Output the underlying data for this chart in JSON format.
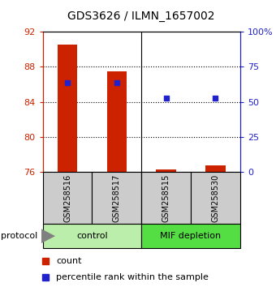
{
  "title": "GDS3626 / ILMN_1657002",
  "samples": [
    "GSM258516",
    "GSM258517",
    "GSM258515",
    "GSM258530"
  ],
  "bar_values": [
    90.5,
    87.5,
    76.35,
    76.8
  ],
  "percentile_values": [
    86.2,
    86.2,
    84.4,
    84.4
  ],
  "bar_color": "#cc2200",
  "percentile_color": "#2222cc",
  "ylim_left": [
    76,
    92
  ],
  "ylim_right": [
    0,
    100
  ],
  "yticks_left": [
    76,
    80,
    84,
    88,
    92
  ],
  "yticks_right": [
    0,
    25,
    50,
    75,
    100
  ],
  "yticklabels_right": [
    "0",
    "25",
    "50",
    "75",
    "100%"
  ],
  "base_value": 76,
  "control_color": "#bbeeaa",
  "mif_color": "#55dd44",
  "sample_box_color": "#cccccc",
  "legend_count_label": "count",
  "legend_pct_label": "percentile rank within the sample",
  "protocol_label": "protocol"
}
